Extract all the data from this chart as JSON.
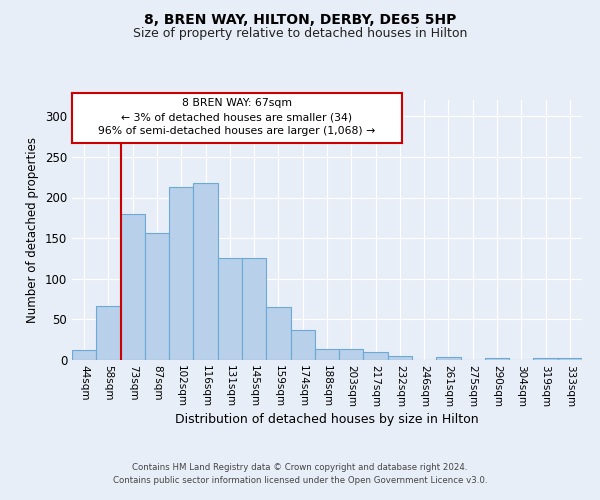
{
  "title1": "8, BREN WAY, HILTON, DERBY, DE65 5HP",
  "title2": "Size of property relative to detached houses in Hilton",
  "xlabel": "Distribution of detached houses by size in Hilton",
  "ylabel": "Number of detached properties",
  "categories": [
    "44sqm",
    "58sqm",
    "73sqm",
    "87sqm",
    "102sqm",
    "116sqm",
    "131sqm",
    "145sqm",
    "159sqm",
    "174sqm",
    "188sqm",
    "203sqm",
    "217sqm",
    "232sqm",
    "246sqm",
    "261sqm",
    "275sqm",
    "290sqm",
    "304sqm",
    "319sqm",
    "333sqm"
  ],
  "values": [
    12,
    67,
    180,
    156,
    213,
    218,
    125,
    125,
    65,
    37,
    14,
    13,
    10,
    5,
    0,
    4,
    0,
    3,
    0,
    3,
    3
  ],
  "bar_color": "#b8d0ea",
  "bar_edge_color": "#6aaad4",
  "annotation_text": "8 BREN WAY: 67sqm\n← 3% of detached houses are smaller (34)\n96% of semi-detached houses are larger (1,068) →",
  "annotation_box_color": "#ffffff",
  "annotation_box_edge": "#cc0000",
  "red_line_color": "#cc0000",
  "background_color": "#e8eef8",
  "plot_background": "#e8eef8",
  "ylim": [
    0,
    320
  ],
  "grid_color": "#ffffff",
  "footer1": "Contains HM Land Registry data © Crown copyright and database right 2024.",
  "footer2": "Contains public sector information licensed under the Open Government Licence v3.0."
}
